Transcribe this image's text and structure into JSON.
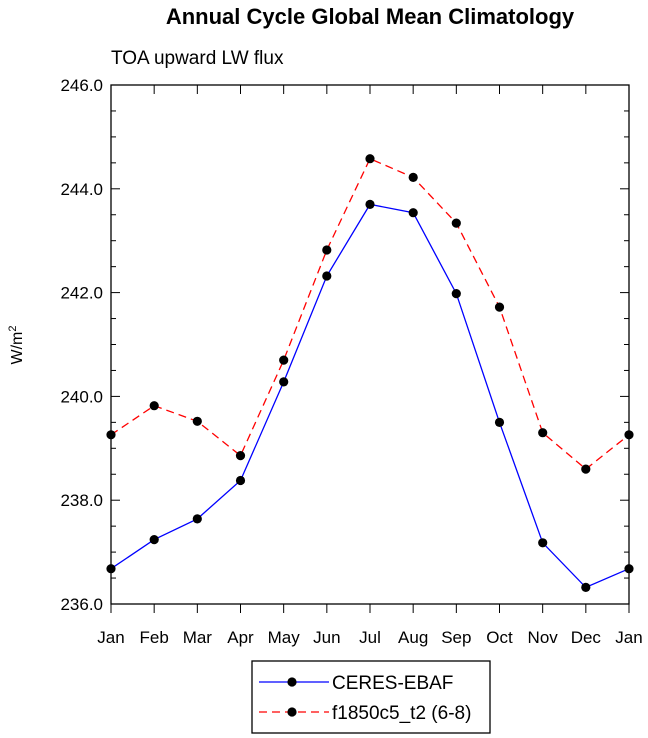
{
  "chart_data": {
    "type": "line",
    "title": "Annual Cycle Global Mean Climatology",
    "subtitle": "TOA upward LW flux",
    "ylabel": "W/m",
    "ylabel_superscript": "2",
    "xlabel": "",
    "categories": [
      "Jan",
      "Feb",
      "Mar",
      "Apr",
      "May",
      "Jun",
      "Jul",
      "Aug",
      "Sep",
      "Oct",
      "Nov",
      "Dec",
      "Jan"
    ],
    "ylim": [
      236.0,
      246.0
    ],
    "yticks": [
      236.0,
      238.0,
      240.0,
      242.0,
      244.0,
      246.0
    ],
    "ytick_labels": [
      "236.0",
      "238.0",
      "240.0",
      "242.0",
      "244.0",
      "246.0"
    ],
    "series": [
      {
        "name": "CERES-EBAF",
        "color": "#0000ff",
        "dash": "solid",
        "values": [
          236.68,
          237.24,
          237.64,
          238.38,
          240.28,
          242.32,
          243.7,
          243.54,
          241.98,
          239.5,
          237.18,
          236.32,
          236.68
        ]
      },
      {
        "name": "f1850c5_t2 (6-8)",
        "color": "#ff0000",
        "dash": "dashed",
        "values": [
          239.26,
          239.82,
          239.52,
          238.86,
          240.7,
          242.82,
          244.58,
          244.22,
          243.34,
          241.72,
          239.3,
          238.6,
          239.26
        ]
      }
    ],
    "legend": {
      "placement": "bottom-center",
      "entries": [
        "CERES-EBAF",
        "f1850c5_t2 (6-8)"
      ]
    }
  }
}
